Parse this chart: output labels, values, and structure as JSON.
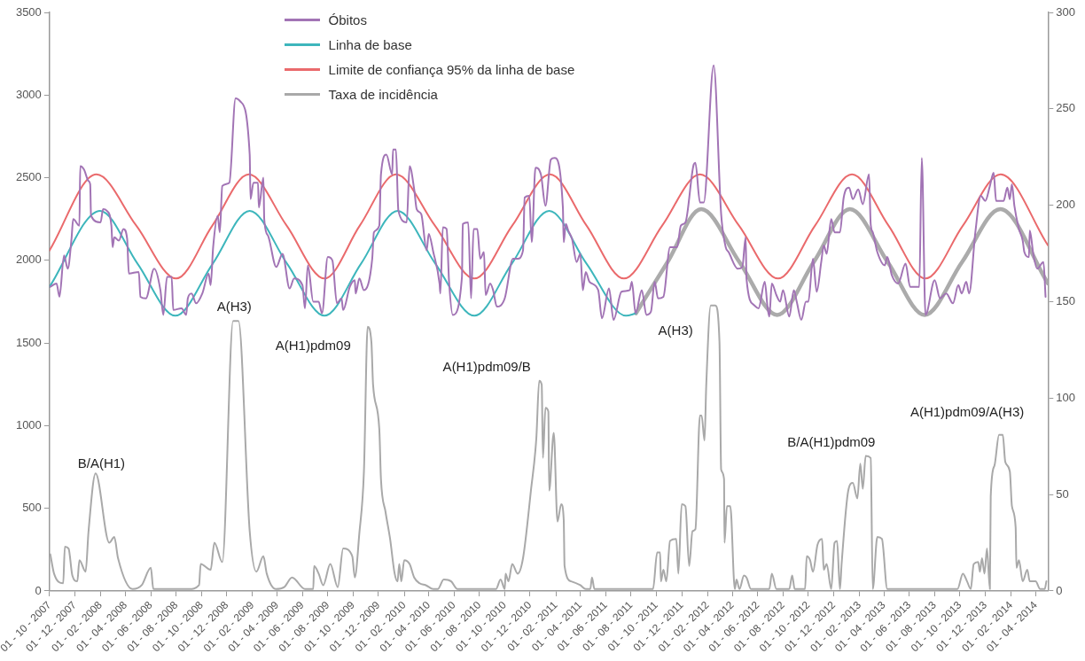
{
  "chart_data": {
    "type": "line",
    "xlim": [
      "2007-10-01",
      "2014-05-01"
    ],
    "xticks": [
      {
        "value": "2007-10-01",
        "label": "01 - 10 - 2007"
      },
      {
        "value": "2007-12-01",
        "label": "01 - 12 - 2007"
      },
      {
        "value": "2008-02-01",
        "label": "01 - 02 - 2008"
      },
      {
        "value": "2008-04-01",
        "label": "01 - 04 - 2008"
      },
      {
        "value": "2008-06-01",
        "label": "01 - 06 - 2008"
      },
      {
        "value": "2008-08-01",
        "label": "01 - 08 - 2008"
      },
      {
        "value": "2008-10-01",
        "label": "01 - 10 - 2008"
      },
      {
        "value": "2008-12-01",
        "label": "01 - 12 - 2008"
      },
      {
        "value": "2009-02-01",
        "label": "01 - 02 - 2009"
      },
      {
        "value": "2009-04-01",
        "label": "01 - 04 - 2009"
      },
      {
        "value": "2009-06-01",
        "label": "01 - 06 - 2009"
      },
      {
        "value": "2009-08-01",
        "label": "01 - 08 - 2009"
      },
      {
        "value": "2009-10-01",
        "label": "01 - 10 - 2009"
      },
      {
        "value": "2009-12-01",
        "label": "01 - 12 - 2009"
      },
      {
        "value": "2010-02-01",
        "label": "01 - 02 - 2010"
      },
      {
        "value": "2010-04-01",
        "label": "01 - 04 - 2010"
      },
      {
        "value": "2010-06-01",
        "label": "01 - 06 - 2010"
      },
      {
        "value": "2010-08-01",
        "label": "01 - 08 - 2010"
      },
      {
        "value": "2010-10-01",
        "label": "01 - 10 - 2010"
      },
      {
        "value": "2010-12-01",
        "label": "01 - 12 - 2010"
      },
      {
        "value": "2011-02-01",
        "label": "01 - 02 - 2011"
      },
      {
        "value": "2011-04-01",
        "label": "01 - 04 - 2011"
      },
      {
        "value": "2011-06-01",
        "label": "01 - 06 - 2011"
      },
      {
        "value": "2011-08-01",
        "label": "01 - 08 - 2011"
      },
      {
        "value": "2011-10-01",
        "label": "01 - 10 - 2011"
      },
      {
        "value": "2011-12-01",
        "label": "01 - 12 - 2011"
      },
      {
        "value": "2012-02-01",
        "label": "01 - 02 - 2012"
      },
      {
        "value": "2012-04-01",
        "label": "01 - 04 - 2012"
      },
      {
        "value": "2012-06-01",
        "label": "01 - 06 - 2012"
      },
      {
        "value": "2012-08-01",
        "label": "01 - 08 - 2012"
      },
      {
        "value": "2012-10-01",
        "label": "01 - 10 - 2012"
      },
      {
        "value": "2012-12-01",
        "label": "01 - 12 - 2012"
      },
      {
        "value": "2013-02-01",
        "label": "01 - 02 - 2013"
      },
      {
        "value": "2013-04-01",
        "label": "01 - 04 - 2013"
      },
      {
        "value": "2013-06-01",
        "label": "01 - 06 - 2013"
      },
      {
        "value": "2013-08-01",
        "label": "01 - 08 - 2013"
      },
      {
        "value": "2013-10-01",
        "label": "01 - 10 - 2013"
      },
      {
        "value": "2013-12-01",
        "label": "01 - 12 - 2013"
      },
      {
        "value": "2014-02-01",
        "label": "01 - 02 - 2014"
      },
      {
        "value": "2014-04-01",
        "label": "01 - 04 - 2014"
      }
    ],
    "ylim": [
      0,
      3500
    ],
    "yticks": [
      0,
      500,
      1000,
      1500,
      2000,
      2500,
      3000,
      3500
    ],
    "y2lim": [
      0,
      300
    ],
    "y2ticks": [
      0,
      50,
      100,
      150,
      200,
      250,
      300
    ],
    "grid": false,
    "legend": "top",
    "marker": "none",
    "series": [
      {
        "name": "Óbitos",
        "color": "#a274b5",
        "x": [
          "2007-10-03",
          "2007-10-18",
          "2007-10-25",
          "2007-11-05",
          "2007-11-14",
          "2007-11-23",
          "2007-11-27",
          "2007-12-12",
          "2007-12-14",
          "2007-12-23",
          "2008-01-03",
          "2008-01-07",
          "2008-01-09",
          "2008-02-01",
          "2008-02-07",
          "2008-02-16",
          "2008-02-27",
          "2008-03-01",
          "2008-03-05",
          "2008-03-16",
          "2008-03-27",
          "2008-04-05",
          "2008-04-09",
          "2008-05-03",
          "2008-05-07",
          "2008-05-20",
          "2008-06-09",
          "2008-06-24",
          "2008-07-01",
          "2008-07-10",
          "2008-07-21",
          "2008-07-25",
          "2008-08-14",
          "2008-08-25",
          "2008-08-29",
          "2008-09-07",
          "2008-09-18",
          "2008-10-03",
          "2008-10-18",
          "2008-10-23",
          "2008-10-29",
          "2008-11-09",
          "2008-11-14",
          "2008-11-20",
          "2008-12-07",
          "2008-12-22",
          "2009-01-03",
          "2009-01-25",
          "2009-01-27",
          "2009-02-03",
          "2009-02-14",
          "2009-02-16",
          "2009-02-27",
          "2009-03-01",
          "2009-03-10",
          "2009-03-30",
          "2009-04-14",
          "2009-05-01",
          "2009-05-12",
          "2009-06-01",
          "2009-06-07",
          "2009-06-14",
          "2009-06-27",
          "2009-07-10",
          "2009-07-18",
          "2009-08-01",
          "2009-08-12",
          "2009-08-23",
          "2009-09-03",
          "2009-09-07",
          "2009-09-23",
          "2009-10-05",
          "2009-10-07",
          "2009-10-16",
          "2009-10-27",
          "2009-11-16",
          "2009-11-20",
          "2009-12-03",
          "2009-12-07",
          "2009-12-20",
          "2010-01-03",
          "2010-01-05",
          "2010-01-12",
          "2010-01-18",
          "2010-02-07",
          "2010-02-14",
          "2010-02-25",
          "2010-03-03",
          "2010-03-14",
          "2010-03-27",
          "2010-04-01",
          "2010-04-12",
          "2010-04-27",
          "2010-04-29",
          "2010-05-05",
          "2010-05-14",
          "2010-05-20",
          "2010-05-29",
          "2010-06-20",
          "2010-06-22",
          "2010-07-05",
          "2010-07-12",
          "2010-07-18",
          "2010-07-27",
          "2010-08-03",
          "2010-08-12",
          "2010-08-16",
          "2010-08-27",
          "2010-09-03",
          "2010-09-12",
          "2010-10-01",
          "2010-10-21",
          "2010-11-01",
          "2010-11-14",
          "2010-11-18",
          "2010-11-29",
          "2010-12-05",
          "2010-12-14",
          "2010-12-27",
          "2011-01-07",
          "2011-01-20",
          "2011-01-29",
          "2011-02-18",
          "2011-02-20",
          "2011-02-25",
          "2011-03-03",
          "2011-03-12",
          "2011-03-23",
          "2011-04-01",
          "2011-04-07",
          "2011-04-14",
          "2011-04-23",
          "2011-05-14",
          "2011-05-23",
          "2011-06-09",
          "2011-06-20",
          "2011-07-09",
          "2011-07-29",
          "2011-08-03",
          "2011-08-12",
          "2011-08-27",
          "2011-09-07",
          "2011-09-18",
          "2011-09-27",
          "2011-10-05",
          "2011-10-18",
          "2011-11-03",
          "2011-11-20",
          "2011-11-29",
          "2011-12-10",
          "2011-12-30",
          "2012-01-03",
          "2012-01-14",
          "2012-01-23",
          "2012-02-16",
          "2012-03-05",
          "2012-03-16",
          "2012-03-23",
          "2012-04-14",
          "2012-04-25",
          "2012-05-03",
          "2012-05-05",
          "2012-05-23",
          "2012-06-03",
          "2012-06-18",
          "2012-06-25",
          "2012-06-29",
          "2012-07-05",
          "2012-07-16",
          "2012-07-25",
          "2012-08-01",
          "2012-08-16",
          "2012-08-27",
          "2012-09-03",
          "2012-09-14",
          "2012-09-25",
          "2012-10-01",
          "2012-10-12",
          "2012-10-21",
          "2012-11-01",
          "2012-11-07",
          "2012-11-14",
          "2012-11-25",
          "2012-12-03",
          "2012-12-16",
          "2012-12-25",
          "2013-01-07",
          "2013-01-16",
          "2013-01-29",
          "2013-02-09",
          "2013-02-24",
          "2013-02-28",
          "2013-03-05",
          "2013-03-16",
          "2013-04-03",
          "2013-04-09",
          "2013-04-20",
          "2013-05-05",
          "2013-05-23",
          "2013-06-03",
          "2013-06-25",
          "2013-07-01",
          "2013-07-10",
          "2013-08-01",
          "2013-08-14",
          "2013-08-29",
          "2013-09-14",
          "2013-09-27",
          "2013-10-05",
          "2013-10-16",
          "2013-10-23",
          "2013-11-07",
          "2013-11-20",
          "2013-12-01",
          "2013-12-12",
          "2013-12-21",
          "2013-12-27",
          "2014-01-14",
          "2014-01-23",
          "2014-01-29",
          "2014-02-03",
          "2014-02-09",
          "2014-02-20",
          "2014-03-01",
          "2014-03-05",
          "2014-03-16",
          "2014-03-18",
          "2014-03-27",
          "2014-04-05",
          "2014-04-20",
          "2014-04-25"
        ],
        "values": [
          1840,
          1860,
          1780,
          2030,
          1950,
          2130,
          2250,
          2210,
          2570,
          2550,
          2480,
          2460,
          2270,
          2230,
          2310,
          2300,
          2210,
          2080,
          2140,
          2120,
          2190,
          2130,
          1920,
          1930,
          1780,
          1770,
          1950,
          1820,
          1670,
          1900,
          1900,
          1700,
          1710,
          1670,
          1770,
          1800,
          1740,
          1800,
          1920,
          1850,
          2080,
          2270,
          2170,
          2450,
          2470,
          2980,
          2960,
          2640,
          2370,
          2470,
          2470,
          2320,
          2500,
          2250,
          2150,
          1960,
          2040,
          1830,
          1890,
          1850,
          1710,
          1970,
          1750,
          1750,
          1680,
          2020,
          2000,
          1740,
          1770,
          1700,
          1840,
          1880,
          1800,
          1890,
          1820,
          2010,
          2170,
          2210,
          2520,
          2640,
          2520,
          2670,
          2670,
          2300,
          2230,
          2570,
          2430,
          2310,
          2280,
          2060,
          2160,
          2050,
          1860,
          1800,
          2200,
          2190,
          1870,
          1670,
          1900,
          2220,
          2230,
          1770,
          2190,
          2190,
          2010,
          2050,
          1790,
          1860,
          1820,
          1720,
          1770,
          2010,
          2010,
          2060,
          2380,
          2390,
          2110,
          2560,
          2520,
          2330,
          2610,
          2620,
          2320,
          2110,
          2220,
          2180,
          2130,
          1990,
          2040,
          1820,
          1930,
          1870,
          1820,
          1650,
          1830,
          1640,
          1810,
          1820,
          1870,
          1680,
          1820,
          1670,
          1690,
          1870,
          1770,
          1780,
          2080,
          2080,
          2210,
          2230,
          2580,
          2590,
          2350,
          2350,
          3180,
          2280,
          2080,
          2050,
          1950,
          1960,
          2140,
          1890,
          1730,
          1710,
          1870,
          1710,
          1660,
          1860,
          1790,
          1750,
          1820,
          1660,
          1820,
          1750,
          1640,
          1750,
          1750,
          2010,
          1810,
          1990,
          2090,
          2040,
          2250,
          2170,
          2170,
          2380,
          2440,
          2370,
          2430,
          2340,
          2520,
          2220,
          2170,
          2050,
          1970,
          2020,
          1910,
          1860,
          1980,
          1840,
          1840,
          2620,
          1670,
          1880,
          1770,
          1800,
          1740,
          1850,
          1800,
          1870,
          1800,
          2170,
          2390,
          2360,
          2450,
          2530,
          2360,
          2360,
          2440,
          2370,
          2460,
          2330,
          2190,
          2120,
          2050,
          2020,
          2180,
          2030,
          1950,
          1990,
          1780
        ]
      },
      {
        "name": "Linha de base",
        "color": "#3db6bc",
        "x": [
          "2007-10-01",
          "2008-01-31",
          "2008-04-30",
          "2008-07-30",
          "2008-10-28",
          "2009-01-25",
          "2009-04-25",
          "2009-07-24",
          "2009-10-20",
          "2010-01-16",
          "2010-04-17",
          "2010-07-20",
          "2010-10-18",
          "2011-01-16",
          "2011-04-16",
          "2011-07-20",
          "2011-08-13"
        ],
        "values": [
          1840,
          2300,
          1980,
          1665,
          1980,
          2300,
          1980,
          1665,
          1980,
          2300,
          1980,
          1665,
          1980,
          2300,
          1980,
          1665,
          1680
        ]
      },
      {
        "color": "#ababab",
        "x": [
          "2011-08-13",
          "2011-10-28",
          "2012-01-17",
          "2012-04-18",
          "2012-07-18",
          "2012-10-14",
          "2013-01-09",
          "2013-04-10",
          "2013-07-08",
          "2013-10-06",
          "2014-01-06",
          "2014-05-01"
        ],
        "values": [
          1680,
          1990,
          2310,
          1990,
          1670,
          1990,
          2310,
          1990,
          1670,
          1990,
          2310,
          1860
        ]
      },
      {
        "name": "Limite de confiança 95% da linha de base",
        "color": "#ea6a6c",
        "x": [
          "2007-10-01",
          "2008-01-22",
          "2008-04-27",
          "2008-08-01",
          "2008-10-27",
          "2009-01-23",
          "2009-04-24",
          "2009-07-24",
          "2009-10-17",
          "2010-01-12",
          "2010-04-16",
          "2010-07-20",
          "2010-10-19",
          "2011-01-18",
          "2011-04-16",
          "2011-07-15",
          "2011-10-15",
          "2012-01-14",
          "2012-04-17",
          "2012-07-20",
          "2012-10-17",
          "2013-01-14",
          "2013-04-12",
          "2013-07-10",
          "2013-10-08",
          "2014-01-07",
          "2014-05-01"
        ],
        "values": [
          2060,
          2520,
          2210,
          1890,
          2210,
          2520,
          2210,
          1890,
          2210,
          2520,
          2210,
          1890,
          2210,
          2520,
          2210,
          1890,
          2210,
          2520,
          2210,
          1890,
          2210,
          2520,
          2210,
          1890,
          2210,
          2520,
          2090
        ]
      },
      {
        "name": "Taxa de incidência",
        "color": "#a9a9a9",
        "axis": "y2",
        "x": [
          "2007-10-03",
          "2007-10-12",
          "2007-11-03",
          "2007-11-07",
          "2007-11-16",
          "2007-11-25",
          "2007-12-07",
          "2007-12-12",
          "2007-12-27",
          "2008-01-03",
          "2008-01-20",
          "2008-02-22",
          "2008-03-05",
          "2008-03-14",
          "2008-04-18",
          "2008-05-10",
          "2008-06-01",
          "2008-06-07",
          "2008-09-01",
          "2008-09-25",
          "2008-09-29",
          "2008-10-23",
          "2008-11-01",
          "2008-11-20",
          "2008-12-16",
          "2008-12-29",
          "2009-01-25",
          "2009-02-10",
          "2009-02-27",
          "2009-03-07",
          "2009-03-29",
          "2009-04-18",
          "2009-05-07",
          "2009-06-07",
          "2009-06-27",
          "2009-06-29",
          "2009-07-10",
          "2009-07-21",
          "2009-08-07",
          "2009-08-25",
          "2009-09-07",
          "2009-09-29",
          "2009-10-05",
          "2009-10-16",
          "2009-10-27",
          "2009-11-05",
          "2009-11-14",
          "2009-11-18",
          "2009-12-03",
          "2009-12-07",
          "2009-12-18",
          "2009-12-29",
          "2010-01-09",
          "2010-01-16",
          "2010-01-20",
          "2010-01-25",
          "2010-02-01",
          "2010-02-14",
          "2010-02-25",
          "2010-03-10",
          "2010-03-25",
          "2010-04-12",
          "2010-04-23",
          "2010-05-07",
          "2010-05-25",
          "2010-06-09",
          "2010-09-10",
          "2010-09-21",
          "2010-10-01",
          "2010-10-03",
          "2010-10-10",
          "2010-10-19",
          "2010-11-01",
          "2010-11-14",
          "2010-12-03",
          "2010-12-16",
          "2010-12-23",
          "2010-12-29",
          "2011-01-01",
          "2011-01-07",
          "2011-01-14",
          "2011-01-16",
          "2011-01-27",
          "2011-02-05",
          "2011-02-14",
          "2011-02-20",
          "2011-02-22",
          "2011-03-10",
          "2011-04-01",
          "2011-04-14",
          "2011-04-25",
          "2011-04-29",
          "2011-05-05",
          "2011-09-23",
          "2011-10-03",
          "2011-10-10",
          "2011-10-12",
          "2011-10-18",
          "2011-10-25",
          "2011-11-03",
          "2011-11-18",
          "2011-11-23",
          "2011-12-01",
          "2011-12-10",
          "2011-12-19",
          "2011-12-27",
          "2012-01-03",
          "2012-01-14",
          "2012-01-18",
          "2012-01-25",
          "2012-01-29",
          "2012-02-09",
          "2012-02-20",
          "2012-03-01",
          "2012-03-05",
          "2012-03-12",
          "2012-03-13",
          "2012-03-19",
          "2012-03-27",
          "2012-04-07",
          "2012-04-11",
          "2012-04-18",
          "2012-04-29",
          "2012-05-05",
          "2012-05-16",
          "2012-06-29",
          "2012-07-05",
          "2012-07-16",
          "2012-08-16",
          "2012-08-23",
          "2012-08-29",
          "2012-09-23",
          "2012-09-27",
          "2012-10-05",
          "2012-10-12",
          "2012-10-23",
          "2012-11-03",
          "2012-11-07",
          "2012-11-14",
          "2012-11-25",
          "2012-12-03",
          "2012-12-09",
          "2012-12-16",
          "2012-12-20",
          "2013-01-05",
          "2013-01-16",
          "2013-01-27",
          "2013-02-03",
          "2013-02-09",
          "2013-02-16",
          "2013-02-28",
          "2013-03-05",
          "2013-03-16",
          "2013-03-27",
          "2013-04-09",
          "2013-09-25",
          "2013-10-08",
          "2013-10-18",
          "2013-10-27",
          "2013-11-03",
          "2013-11-14",
          "2013-11-18",
          "2013-11-23",
          "2013-11-29",
          "2013-12-05",
          "2013-12-12",
          "2013-12-14",
          "2013-12-23",
          "2014-01-03",
          "2014-01-12",
          "2014-01-18",
          "2014-01-29",
          "2014-02-03",
          "2014-02-12",
          "2014-02-14",
          "2014-02-20",
          "2014-03-01",
          "2014-03-12",
          "2014-03-18",
          "2014-04-01",
          "2014-04-12",
          "2014-04-23",
          "2014-04-27"
        ],
        "values": [
          19,
          9,
          4,
          23,
          22,
          8,
          5,
          16,
          10,
          31,
          61,
          25,
          28,
          17,
          1,
          3,
          12,
          1,
          1,
          3,
          14,
          11,
          25,
          15,
          140,
          140,
          31,
          10,
          18,
          9,
          1,
          2,
          7,
          1,
          1,
          13,
          9,
          3,
          14,
          2,
          22,
          18,
          7,
          30,
          62,
          137,
          129,
          107,
          84,
          58,
          41,
          27,
          9,
          5,
          14,
          5,
          16,
          14,
          7,
          4,
          3,
          1,
          1,
          6,
          5,
          1,
          1,
          6,
          1,
          9,
          5,
          14,
          9,
          17,
          52,
          79,
          109,
          107,
          69,
          95,
          93,
          52,
          82,
          36,
          45,
          37,
          13,
          5,
          3,
          1,
          1,
          7,
          1,
          1,
          20,
          20,
          5,
          11,
          5,
          26,
          27,
          9,
          45,
          44,
          13,
          31,
          32,
          91,
          91,
          78,
          106,
          148,
          148,
          129,
          63,
          58,
          25,
          44,
          44,
          1,
          6,
          1,
          8,
          7,
          1,
          1,
          9,
          1,
          1,
          8,
          1,
          1,
          18,
          16,
          10,
          24,
          27,
          11,
          14,
          1,
          25,
          26,
          1,
          14,
          52,
          56,
          48,
          66,
          53,
          70,
          69,
          1,
          28,
          27,
          1,
          1,
          9,
          5,
          1,
          14,
          15,
          10,
          17,
          9,
          22,
          1,
          49,
          65,
          81,
          81,
          67,
          62,
          44,
          33,
          12,
          16,
          5,
          11,
          5,
          5,
          1,
          1,
          5
        ]
      }
    ],
    "annotations": [
      "B/A(H1)",
      "A(H3)",
      "A(H1)pdm09",
      "A(H1)pdm09/B",
      "A(H3)",
      "B/A(H1)pdm09",
      "A(H1)pdm09/A(H3)"
    ]
  }
}
